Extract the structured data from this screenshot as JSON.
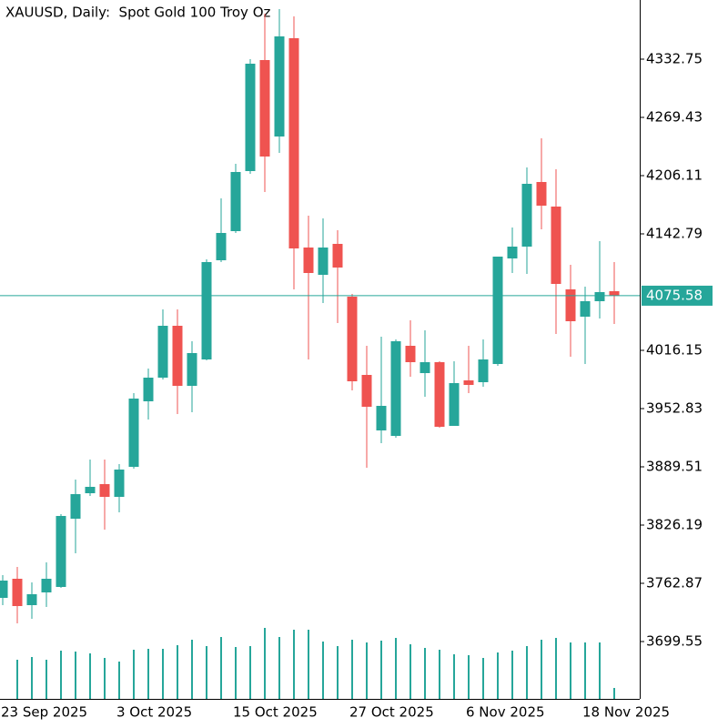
{
  "chart_data": {
    "type": "candlestick",
    "title": "XAUUSD, Daily:  Spot Gold 100 Troy Oz",
    "categories": [
      "23 Sep 2025",
      null,
      null,
      null,
      null,
      null,
      null,
      null,
      "3 Oct 2025",
      null,
      null,
      null,
      null,
      null,
      null,
      null,
      "15 Oct 2025",
      null,
      null,
      null,
      null,
      null,
      null,
      null,
      "27 Oct 2025",
      null,
      null,
      null,
      null,
      null,
      null,
      null,
      "6 Nov 2025",
      null,
      null,
      null,
      null,
      null,
      null,
      null,
      "18 Nov 2025",
      null,
      null
    ],
    "open": [
      3747.04,
      3767.82,
      3739.13,
      3752.98,
      3758.92,
      3833.12,
      3860.82,
      3870.72,
      3856.86,
      3889.51,
      3960.75,
      3986.47,
      4042.87,
      3977.57,
      4006.26,
      4114.1,
      4145.76,
      4211.06,
      4331.76,
      4248.65,
      4355.51,
      4127.95,
      4098.27,
      4131.91,
      4074.53,
      3989.44,
      3929.09,
      3923.15,
      4021.1,
      3991.42,
      4003.29,
      3934.03,
      3983.5,
      3981.52,
      4001.31,
      4116.08,
      4128.94,
      4199.19,
      4172.47,
      4082.44,
      4052.76,
      4069.58,
      4080.46
    ],
    "high": [
      3771.78,
      3780.68,
      3763.86,
      3785.63,
      3838.07,
      3875.66,
      3897.43,
      3897.43,
      3892.48,
      3969.65,
      3996.37,
      4060.67,
      4060.67,
      4026.05,
      4115.09,
      4181.38,
      4218.97,
      4332.75,
      4382.22,
      4387.17,
      4379.25,
      4162.58,
      4159.61,
      4146.75,
      4077.49,
      4021.1,
      4030.99,
      4028.03,
      4048.8,
      4037.92,
      4004.28,
      4004.28,
      4021.1,
      4028.03,
      4118.06,
      4149.72,
      4215.02,
      4246.68,
      4213.04,
      4109.15,
      4085.41,
      4134.88,
      4112.12
    ],
    "low": [
      3739.13,
      3719.34,
      3724.29,
      3737.15,
      3757.93,
      3795.52,
      3857.85,
      3821.25,
      3840.04,
      3887.53,
      3940.96,
      3984.49,
      3946.9,
      3948.88,
      4005.27,
      4112.12,
      4143.78,
      4208.09,
      4188.3,
      4230.85,
      4082.44,
      4006.26,
      4067.6,
      4045.83,
      3972.62,
      3888.52,
      3915.24,
      3921.17,
      3987.46,
      3965.69,
      3932.06,
      3934.03,
      3969.65,
      3976.58,
      3999.33,
      4100.25,
      4099.26,
      4147.74,
      4033.96,
      4009.23,
      4001.31,
      4050.78,
      4044.84
    ],
    "close": [
      3765.84,
      3738.14,
      3751.0,
      3767.82,
      3836.09,
      3859.83,
      3867.75,
      3856.86,
      3886.55,
      3963.72,
      3986.47,
      4042.87,
      3977.57,
      4013.18,
      4112.12,
      4143.78,
      4210.07,
      4327.8,
      4226.89,
      4357.49,
      4126.96,
      4100.25,
      4127.95,
      4106.19,
      3982.51,
      3954.81,
      3955.8,
      4026.05,
      4003.29,
      4003.29,
      3933.05,
      3980.54,
      3978.56,
      4006.26,
      4118.06,
      4128.94,
      4197.21,
      4173.46,
      4088.38,
      4047.81,
      4069.58,
      4079.47,
      4075.58
    ],
    "volume": [
      null,
      43,
      46,
      43,
      53,
      52,
      50,
      45,
      41,
      54,
      55,
      55,
      59,
      65,
      58,
      68,
      57,
      58,
      78,
      68,
      76,
      76,
      63,
      58,
      65,
      62,
      64,
      67,
      60,
      56,
      54,
      49,
      48,
      45,
      51,
      53,
      58,
      65,
      67,
      62,
      62,
      62,
      12
    ],
    "up_color": "#26a69a",
    "down_color": "#ef5350",
    "volume_color": "#26a69a",
    "last_price": 4075.58,
    "last_price_color": "#26a69a",
    "ylim": [
      3637.22,
      4397.06
    ],
    "yticks": [
      3699.55,
      3762.87,
      3826.19,
      3889.51,
      3952.83,
      4016.15,
      4142.79,
      4206.11,
      4269.43,
      4332.75
    ]
  }
}
